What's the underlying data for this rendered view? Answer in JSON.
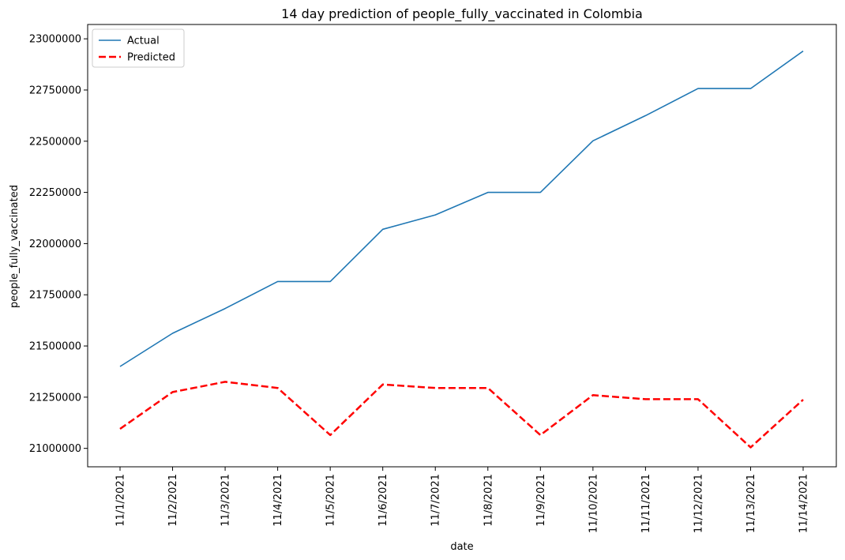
{
  "chart_data": {
    "type": "line",
    "title": "14 day prediction of people_fully_vaccinated in Colombia",
    "xlabel": "date",
    "ylabel": "people_fully_vaccinated",
    "categories": [
      "11/1/2021",
      "11/2/2021",
      "11/3/2021",
      "11/4/2021",
      "11/5/2021",
      "11/6/2021",
      "11/7/2021",
      "11/8/2021",
      "11/9/2021",
      "11/10/2021",
      "11/11/2021",
      "11/12/2021",
      "11/13/2021",
      "11/14/2021"
    ],
    "yticks": [
      21000000,
      21250000,
      21500000,
      21750000,
      22000000,
      22250000,
      22500000,
      22750000,
      23000000
    ],
    "ylim": [
      20910000,
      23070000
    ],
    "grid": false,
    "legend_position": "top-left",
    "series": [
      {
        "name": "Actual",
        "color": "#1f77b4",
        "dash": "solid",
        "values": [
          21400000,
          21562000,
          21683000,
          21815000,
          21815000,
          22070000,
          22140000,
          22250000,
          22250000,
          22502000,
          22625000,
          22757000,
          22757000,
          22940000
        ]
      },
      {
        "name": "Predicted",
        "color": "#ff0000",
        "dash": "dashed",
        "values": [
          21095000,
          21275000,
          21325000,
          21295000,
          21065000,
          21312000,
          21295000,
          21295000,
          21065000,
          21260000,
          21240000,
          21240000,
          21005000,
          21238000
        ]
      }
    ]
  }
}
